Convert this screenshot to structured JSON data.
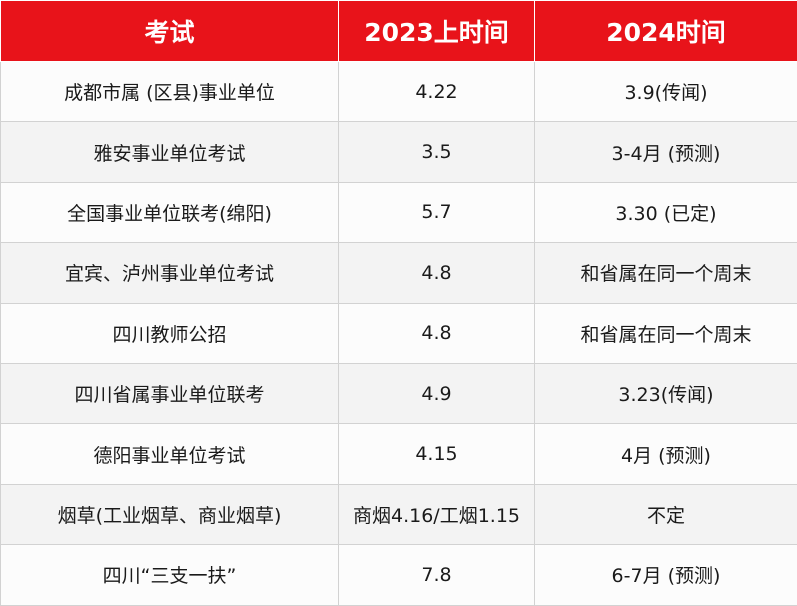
{
  "table": {
    "headers": [
      "考试",
      "2023上时间",
      "2024时间"
    ],
    "rows": [
      [
        "成都市属 (区县)事业单位",
        "4.22",
        "3.9(传闻)"
      ],
      [
        "雅安事业单位考试",
        "3.5",
        "3-4月 (预测)"
      ],
      [
        "全国事业单位联考(绵阳)",
        "5.7",
        "3.30 (已定)"
      ],
      [
        "宜宾、泸州事业单位考试",
        "4.8",
        "和省属在同一个周末"
      ],
      [
        "四川教师公招",
        "4.8",
        "和省属在同一个周末"
      ],
      [
        "四川省属事业单位联考",
        "4.9",
        "3.23(传闻)"
      ],
      [
        "德阳事业单位考试",
        "4.15",
        "4月 (预测)"
      ],
      [
        "烟草(工业烟草、商业烟草)",
        "商烟4.16/工烟1.15",
        "不定"
      ],
      [
        "四川“三支一扶”",
        "7.8",
        "6-7月 (预测)"
      ]
    ]
  },
  "colors": {
    "header_bg": "#e8131a",
    "header_text": "#ffffff",
    "row_alt_bg": "#f3f3f3",
    "border": "#d2d2d2"
  }
}
